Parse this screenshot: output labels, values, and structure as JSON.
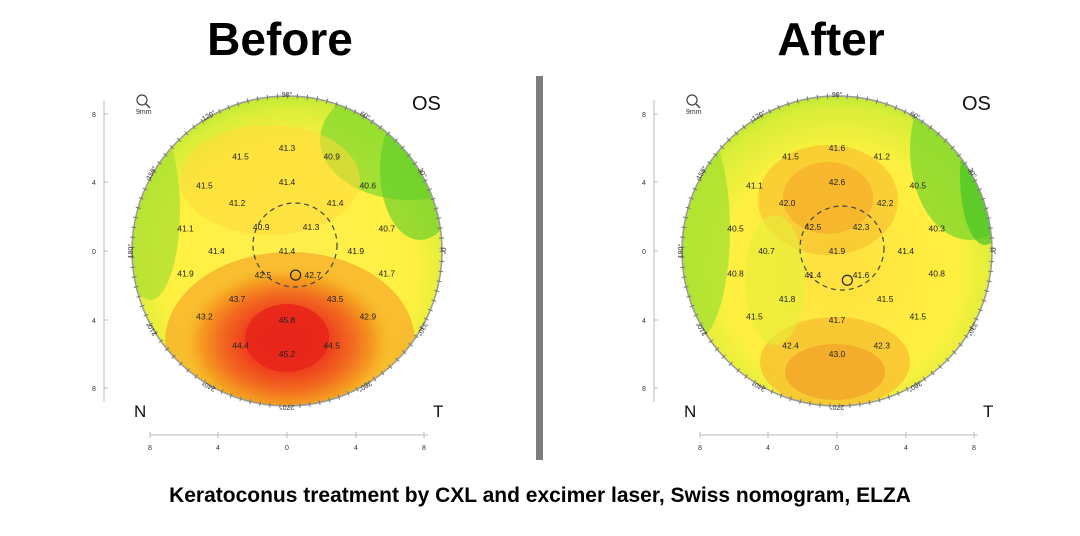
{
  "panels": [
    {
      "title": "Before",
      "eye": "OS",
      "zoom_label": "9mm",
      "nasal": "N",
      "temporal": "T",
      "angles": [
        "90°",
        "120°",
        "60°",
        "150°",
        "30°",
        "180°",
        "0°",
        "210°",
        "330°",
        "240°",
        "300°",
        "270°"
      ],
      "y_ticks": [
        "8",
        "4",
        "0",
        "4",
        "8"
      ],
      "x_ticks": [
        "8",
        "4",
        "0",
        "4",
        "8"
      ],
      "values": [
        {
          "v": "41.3",
          "x": 0,
          "y": 6.0
        },
        {
          "v": "41.5",
          "x": -2.7,
          "y": 5.5
        },
        {
          "v": "40.9",
          "x": 2.6,
          "y": 5.5
        },
        {
          "v": "41.5",
          "x": -4.8,
          "y": 3.8
        },
        {
          "v": "41.4",
          "x": 0,
          "y": 4.0
        },
        {
          "v": "40.6",
          "x": 4.7,
          "y": 3.8
        },
        {
          "v": "41.2",
          "x": -2.9,
          "y": 2.8
        },
        {
          "v": "41.4",
          "x": 2.8,
          "y": 2.8
        },
        {
          "v": "41.1",
          "x": -5.9,
          "y": 1.3
        },
        {
          "v": "40.9",
          "x": -1.5,
          "y": 1.4
        },
        {
          "v": "41.3",
          "x": 1.4,
          "y": 1.4
        },
        {
          "v": "40.7",
          "x": 5.8,
          "y": 1.3
        },
        {
          "v": "41.4",
          "x": -4.1,
          "y": 0
        },
        {
          "v": "41.4",
          "x": 0,
          "y": 0
        },
        {
          "v": "41.9",
          "x": 4.0,
          "y": 0
        },
        {
          "v": "41.9",
          "x": -5.9,
          "y": -1.3
        },
        {
          "v": "42.5",
          "x": -1.4,
          "y": -1.4
        },
        {
          "v": "42.7",
          "x": 1.5,
          "y": -1.4
        },
        {
          "v": "41.7",
          "x": 5.8,
          "y": -1.3
        },
        {
          "v": "43.7",
          "x": -2.9,
          "y": -2.8
        },
        {
          "v": "43.5",
          "x": 2.8,
          "y": -2.8
        },
        {
          "v": "43.2",
          "x": -4.8,
          "y": -3.8
        },
        {
          "v": "45.8",
          "x": 0,
          "y": -4.0
        },
        {
          "v": "42.9",
          "x": 4.7,
          "y": -3.8
        },
        {
          "v": "44.4",
          "x": -2.7,
          "y": -5.5
        },
        {
          "v": "45.2",
          "x": 0,
          "y": -6.0
        },
        {
          "v": "44.5",
          "x": 2.6,
          "y": -5.5
        }
      ],
      "pupil_marker": {
        "x": 0.5,
        "y": -1.4
      }
    },
    {
      "title": "After",
      "eye": "OS",
      "zoom_label": "9mm",
      "nasal": "N",
      "temporal": "T",
      "angles": [
        "90°",
        "120°",
        "60°",
        "150°",
        "30°",
        "180°",
        "0°",
        "210°",
        "330°",
        "240°",
        "300°",
        "270°"
      ],
      "y_ticks": [
        "8",
        "4",
        "0",
        "4",
        "8"
      ],
      "x_ticks": [
        "8",
        "4",
        "0",
        "4",
        "8"
      ],
      "values": [
        {
          "v": "41.6",
          "x": 0,
          "y": 6.0
        },
        {
          "v": "41.5",
          "x": -2.7,
          "y": 5.5
        },
        {
          "v": "41.2",
          "x": 2.6,
          "y": 5.5
        },
        {
          "v": "41.1",
          "x": -4.8,
          "y": 3.8
        },
        {
          "v": "42.6",
          "x": 0,
          "y": 4.0
        },
        {
          "v": "40.5",
          "x": 4.7,
          "y": 3.8
        },
        {
          "v": "42.0",
          "x": -2.9,
          "y": 2.8
        },
        {
          "v": "42.2",
          "x": 2.8,
          "y": 2.8
        },
        {
          "v": "40.5",
          "x": -5.9,
          "y": 1.3
        },
        {
          "v": "42.5",
          "x": -1.4,
          "y": 1.4
        },
        {
          "v": "42.3",
          "x": 1.4,
          "y": 1.4
        },
        {
          "v": "40.3",
          "x": 5.8,
          "y": 1.3
        },
        {
          "v": "40.7",
          "x": -4.1,
          "y": 0
        },
        {
          "v": "41.9",
          "x": 0,
          "y": 0
        },
        {
          "v": "41.4",
          "x": 4.0,
          "y": 0
        },
        {
          "v": "40.8",
          "x": -5.9,
          "y": -1.3
        },
        {
          "v": "41.4",
          "x": -1.4,
          "y": -1.4
        },
        {
          "v": "41.6",
          "x": 1.4,
          "y": -1.4
        },
        {
          "v": "40.8",
          "x": 5.8,
          "y": -1.3
        },
        {
          "v": "41.8",
          "x": -2.9,
          "y": -2.8
        },
        {
          "v": "41.5",
          "x": 2.8,
          "y": -2.8
        },
        {
          "v": "41.5",
          "x": -4.8,
          "y": -3.8
        },
        {
          "v": "41.7",
          "x": 0,
          "y": -4.0
        },
        {
          "v": "41.5",
          "x": 4.7,
          "y": -3.8
        },
        {
          "v": "42.4",
          "x": -2.7,
          "y": -5.5
        },
        {
          "v": "43.0",
          "x": 0,
          "y": -6.0
        },
        {
          "v": "42.3",
          "x": 2.6,
          "y": -5.5
        }
      ],
      "pupil_marker": {
        "x": 0.6,
        "y": -1.7
      }
    }
  ],
  "caption": "Keratoconus treatment by CXL and excimer laser, Swiss nomogram, ELZA",
  "colors": {
    "red": "#e8241a",
    "orange": "#f5a020",
    "yellow": "#fff43a",
    "green": "#55d02a",
    "divider": "#7d7d7d"
  }
}
